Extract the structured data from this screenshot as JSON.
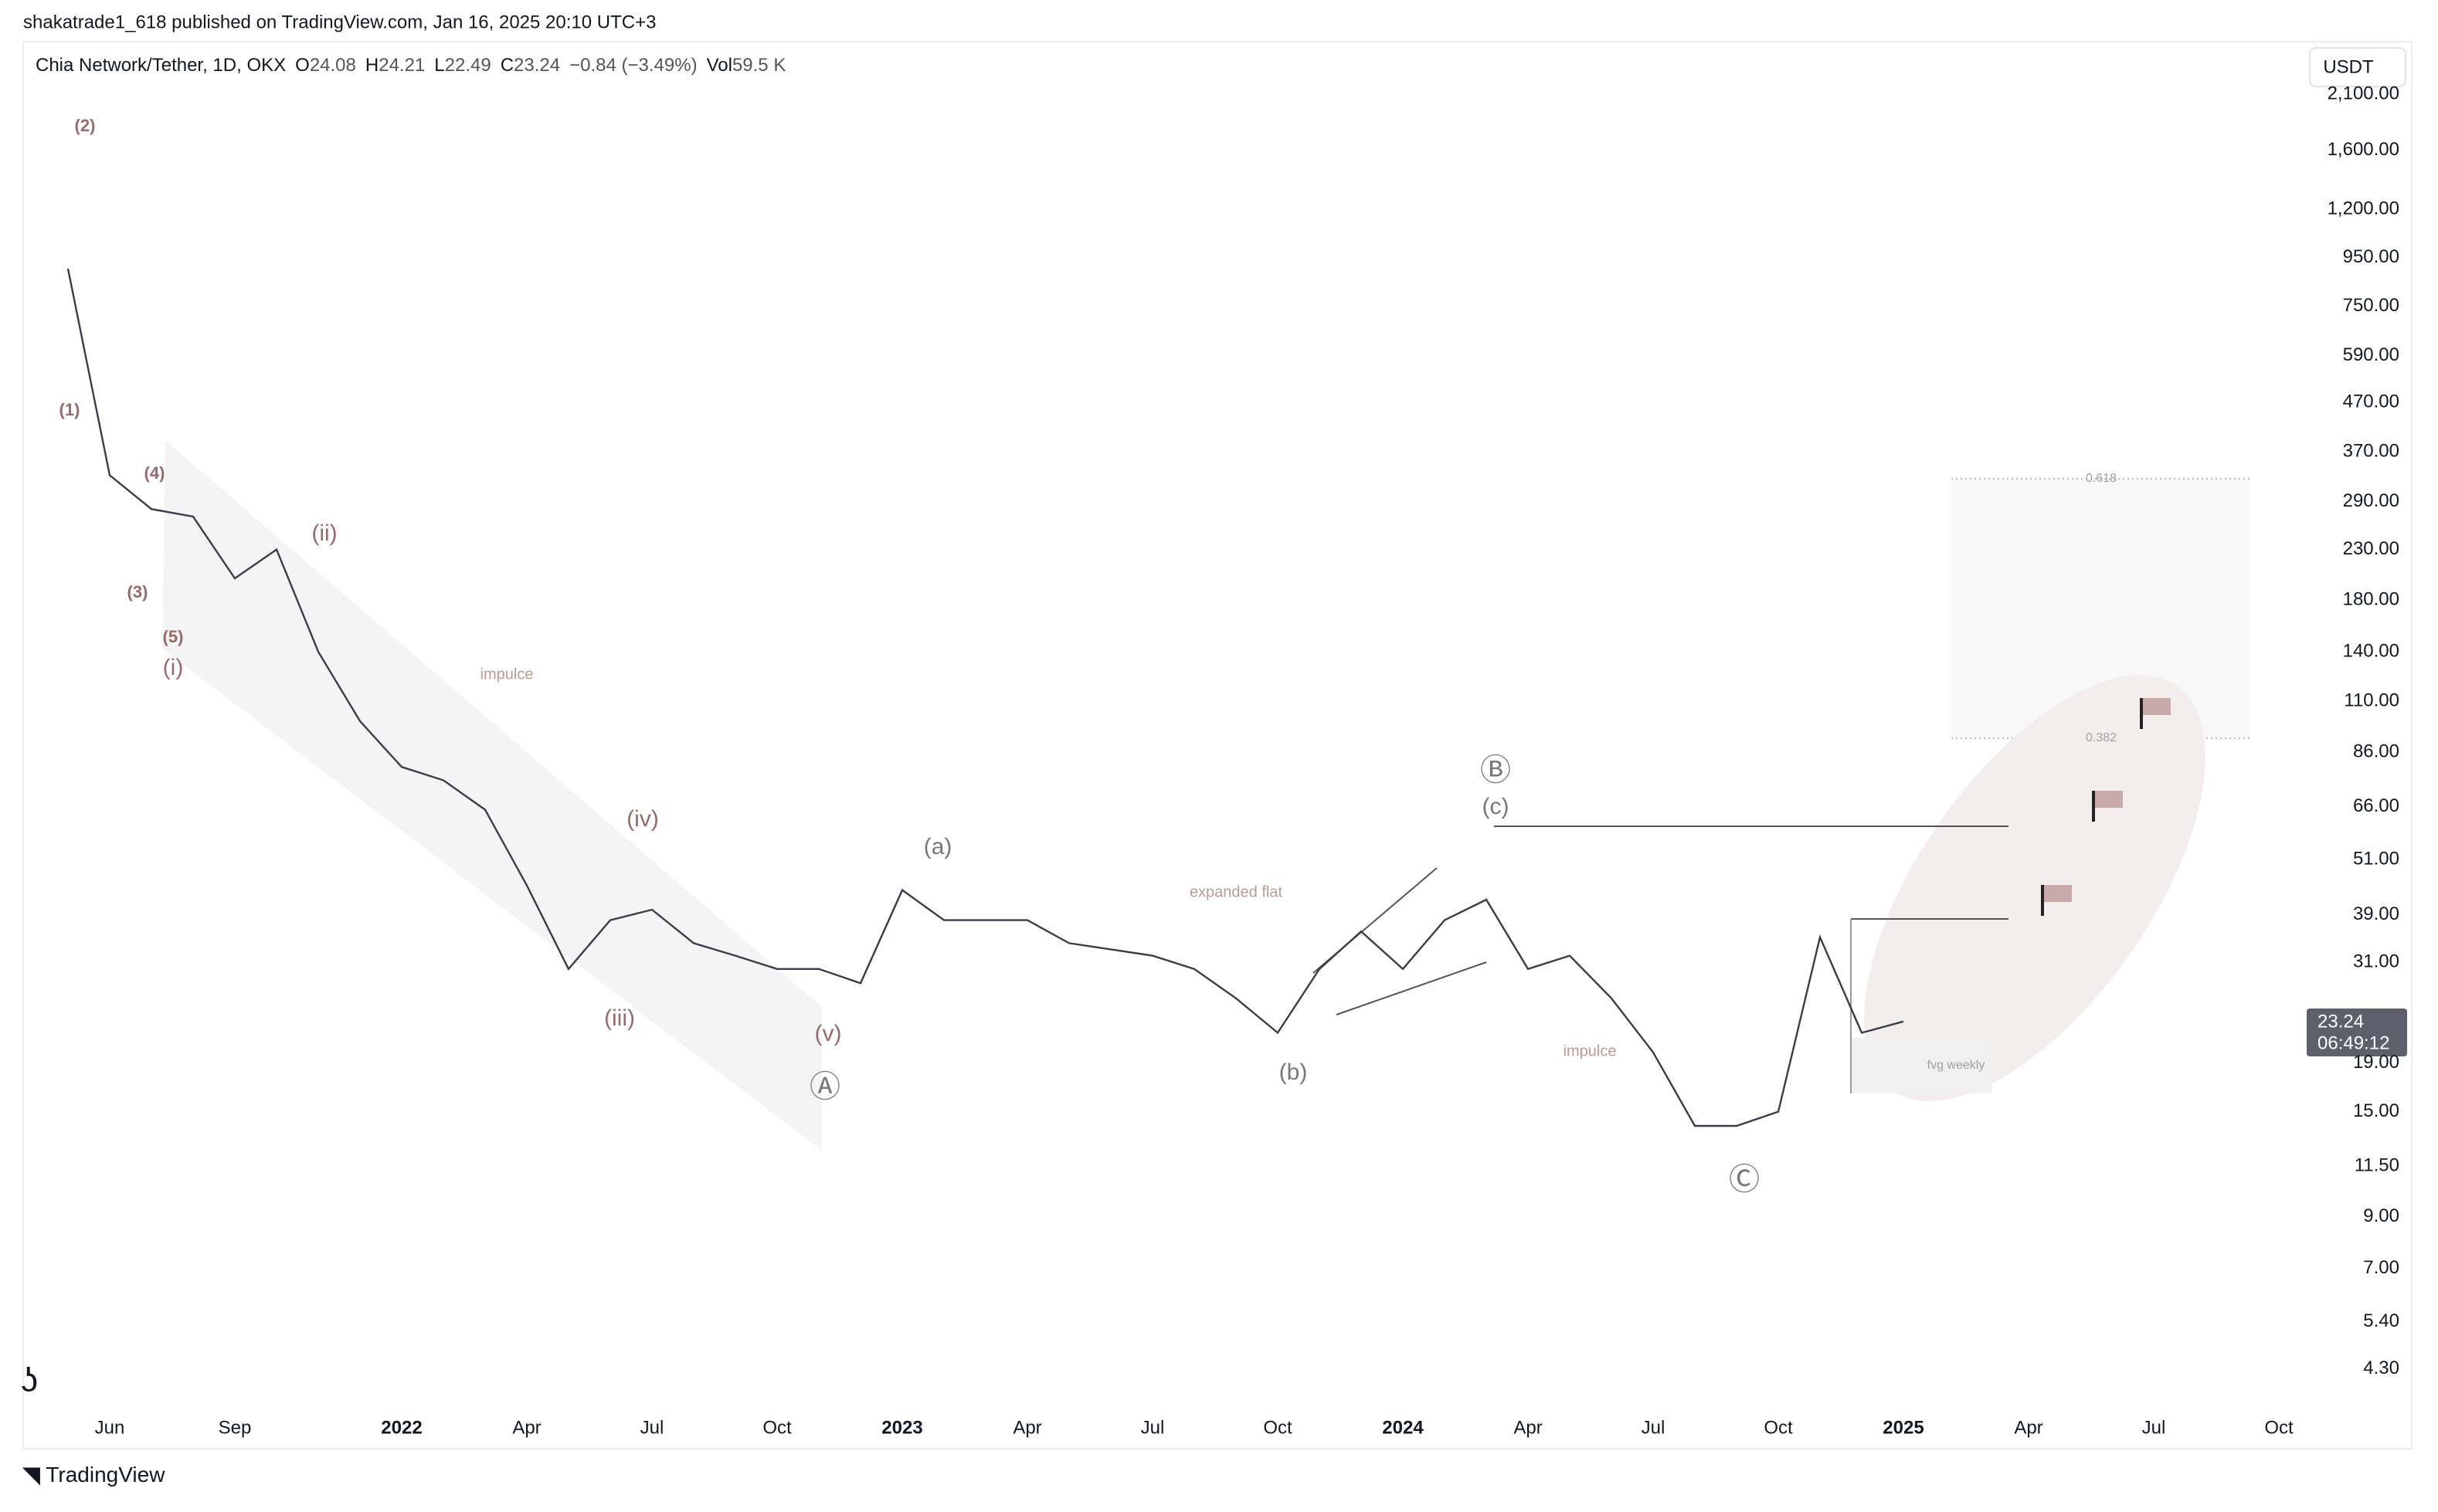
{
  "header": {
    "publisher": "shakatrade1_618 published on TradingView.com, Jan 16, 2025 20:10 UTC+3",
    "symbol": "Chia Network/Tether, 1D, OKX",
    "ohlc": [
      {
        "label": "O",
        "value": "24.08"
      },
      {
        "label": "H",
        "value": "24.21"
      },
      {
        "label": "L",
        "value": "22.49"
      },
      {
        "label": "C",
        "value": "23.24"
      }
    ],
    "change": "−0.84 (−3.49%)",
    "volume_label": "Vol",
    "volume": "59.5 K"
  },
  "currency": "USDT",
  "price_tag": "23.24",
  "countdown": "06:49:12",
  "brand": "TradingView",
  "chart_data": {
    "type": "line",
    "log_scale": true,
    "color": "#3a3d4a",
    "categories": [
      null,
      "Jun",
      null,
      null,
      "Sep",
      null,
      null,
      null,
      "2022",
      null,
      null,
      "Apr",
      null,
      null,
      "Jul",
      null,
      null,
      "Oct",
      null,
      null,
      "2023",
      null,
      null,
      "Apr",
      null,
      null,
      "Jul",
      null,
      null,
      "Oct",
      null,
      null,
      "2024",
      null,
      null,
      "Apr",
      null,
      null,
      "Jul",
      null,
      null,
      "Oct",
      null,
      null,
      "2025",
      null,
      null,
      "Apr",
      null,
      null,
      "Jul",
      null,
      null,
      "Oct"
    ],
    "values": [
      900,
      330,
      280,
      270,
      200,
      230,
      140,
      100,
      80,
      75,
      65,
      45,
      30,
      38,
      40,
      34,
      32,
      30,
      30,
      28,
      44,
      38,
      38,
      38,
      34,
      33,
      32,
      30,
      26,
      22,
      30,
      36,
      30,
      38,
      42,
      30,
      32,
      26,
      20,
      14,
      14,
      15,
      35,
      22,
      23.24,
      null,
      null,
      null,
      null,
      null,
      null,
      null,
      null,
      null
    ],
    "ylim": [
      3.6,
      2650
    ],
    "yticks": [
      {
        "value": 2100,
        "label": "2,100.00"
      },
      {
        "value": 1600,
        "label": "1,600.00"
      },
      {
        "value": 1200,
        "label": "1,200.00"
      },
      {
        "value": 950,
        "label": "950.00"
      },
      {
        "value": 750,
        "label": "750.00"
      },
      {
        "value": 590,
        "label": "590.00"
      },
      {
        "value": 470,
        "label": "470.00"
      },
      {
        "value": 370,
        "label": "370.00"
      },
      {
        "value": 290,
        "label": "290.00"
      },
      {
        "value": 230,
        "label": "230.00"
      },
      {
        "value": 180,
        "label": "180.00"
      },
      {
        "value": 140,
        "label": "140.00"
      },
      {
        "value": 110,
        "label": "110.00"
      },
      {
        "value": 86,
        "label": "86.00"
      },
      {
        "value": 66,
        "label": "66.00"
      },
      {
        "value": 51,
        "label": "51.00"
      },
      {
        "value": 39,
        "label": "39.00"
      },
      {
        "value": 31,
        "label": "31.00"
      },
      {
        "value": 19,
        "label": "19.00"
      },
      {
        "value": 15,
        "label": "15.00"
      },
      {
        "value": 11.5,
        "label": "11.50"
      },
      {
        "value": 9,
        "label": "9.00"
      },
      {
        "value": 7,
        "label": "7.00"
      },
      {
        "value": 5.4,
        "label": "5.40"
      },
      {
        "value": 4.3,
        "label": "4.30"
      }
    ],
    "annotations": [
      "(2)",
      "(1)",
      "(4)",
      "(3)",
      "(5)",
      "(i)",
      "(ii)",
      "(iii)",
      "(iv)",
      "(v)",
      "Ⓐ",
      "(a)",
      "(b)",
      "(c)",
      "Ⓑ",
      "Ⓒ",
      "impulce",
      "expanded flat",
      "impulce",
      "fvg weekly",
      "0.618",
      "0.382"
    ]
  }
}
